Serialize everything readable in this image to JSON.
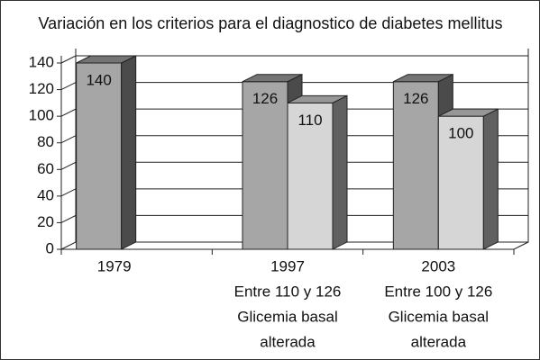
{
  "chart_data": {
    "type": "bar3d",
    "title": "Variación en los criterios para el diagnostico de diabetes mellitus",
    "categories": [
      [
        "1979"
      ],
      [
        "1997",
        "Entre 110 y 126",
        "Glicemia basal",
        "alterada"
      ],
      [
        "2003",
        "Entre 100 y 126",
        "Glicemia basal",
        "alterada"
      ]
    ],
    "series": [
      {
        "color": "#a6a6a6",
        "values": [
          140,
          126,
          126
        ]
      },
      {
        "color": "#d6d6d6",
        "values": [
          null,
          110,
          100
        ]
      }
    ],
    "ylim": [
      0,
      140
    ],
    "yticks": [
      0,
      20,
      40,
      60,
      80,
      100,
      120,
      140
    ],
    "grid": true
  }
}
